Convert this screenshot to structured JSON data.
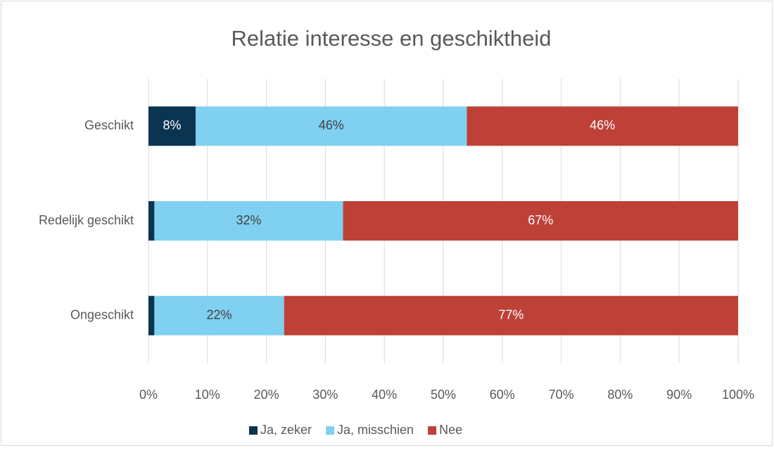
{
  "chart_data": {
    "type": "stacked_barh",
    "title": "Relatie interesse en geschiktheid",
    "categories": [
      "Geschikt",
      "Redelijk geschikt",
      "Ongeschikt"
    ],
    "series": [
      {
        "name": "Ja, zeker",
        "color": "#0b3451",
        "label_color": "#ffffff",
        "values": [
          8,
          1,
          1
        ],
        "value_labels": [
          "8%",
          null,
          null
        ]
      },
      {
        "name": "Ja, misschien",
        "color": "#7fd0f1",
        "label_color": "#404040",
        "values": [
          46,
          32,
          22
        ],
        "value_labels": [
          "46%",
          "32%",
          "22%"
        ]
      },
      {
        "name": "Nee",
        "color": "#be4137",
        "label_color": "#ffffff",
        "values": [
          46,
          67,
          77
        ],
        "value_labels": [
          "46%",
          "67%",
          "77%"
        ]
      }
    ],
    "xlim": [
      0,
      100
    ],
    "xticks": [
      {
        "value": 0,
        "label": "0%"
      },
      {
        "value": 10,
        "label": "10%"
      },
      {
        "value": 20,
        "label": "20%"
      },
      {
        "value": 30,
        "label": "30%"
      },
      {
        "value": 40,
        "label": "40%"
      },
      {
        "value": 50,
        "label": "50%"
      },
      {
        "value": 60,
        "label": "60%"
      },
      {
        "value": 70,
        "label": "70%"
      },
      {
        "value": 80,
        "label": "80%"
      },
      {
        "value": 90,
        "label": "90%"
      },
      {
        "value": 100,
        "label": "100%"
      }
    ],
    "grid": true,
    "legend": "bottom"
  }
}
